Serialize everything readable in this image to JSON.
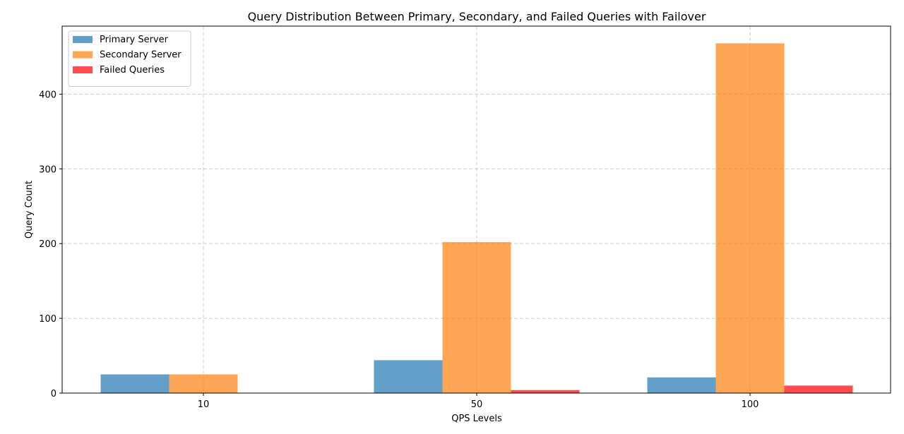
{
  "chart_data": {
    "type": "bar",
    "title": "Query Distribution Between Primary, Secondary, and Failed Queries with Failover",
    "xlabel": "QPS Levels",
    "ylabel": "Query Count",
    "categories": [
      "10",
      "50",
      "100"
    ],
    "series": [
      {
        "name": "Primary Server",
        "values": [
          25,
          44,
          21
        ],
        "color": "#1f77b4"
      },
      {
        "name": "Secondary Server",
        "values": [
          25,
          202,
          468
        ],
        "color": "#ff7f0e"
      },
      {
        "name": "Failed Queries",
        "values": [
          0,
          4,
          10
        ],
        "color": "#ff0000"
      }
    ],
    "yticks": [
      0,
      100,
      200,
      300,
      400
    ],
    "ylim": [
      0,
      491
    ],
    "grid": true,
    "legend_position": "upper-left"
  }
}
